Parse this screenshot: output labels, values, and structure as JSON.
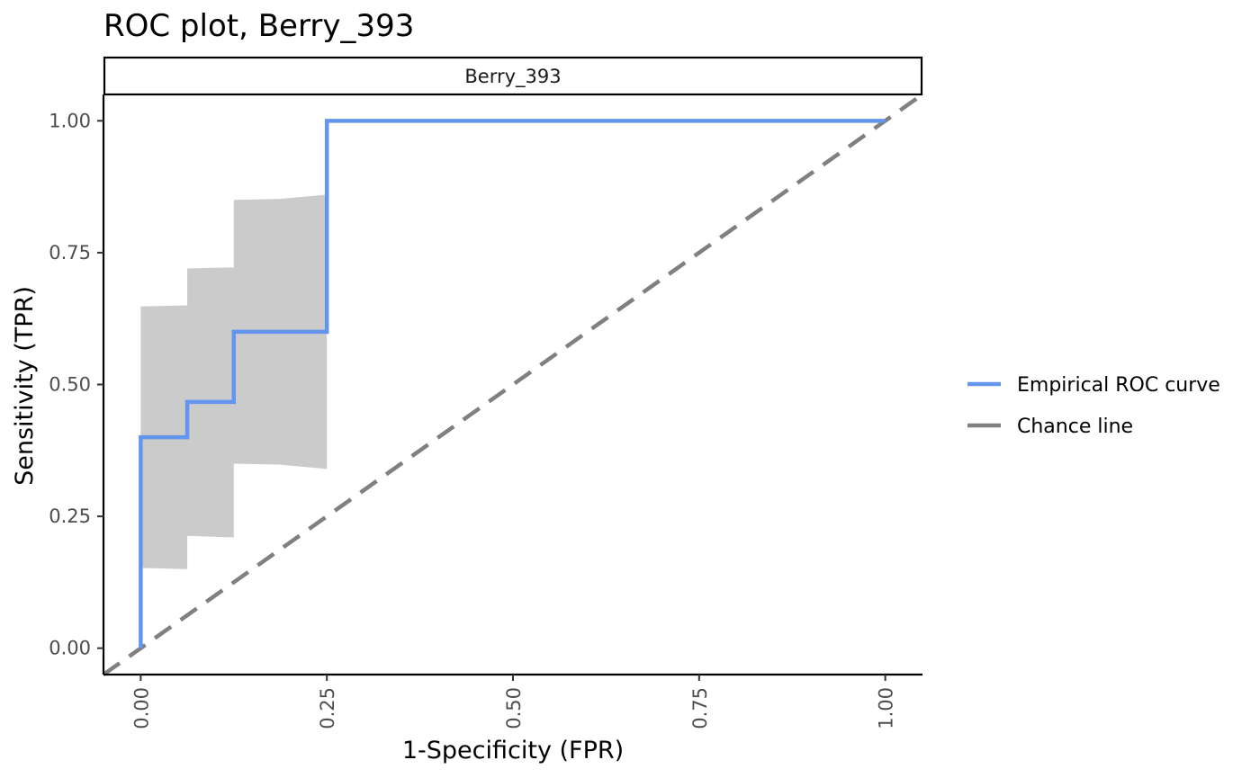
{
  "chart_data": {
    "type": "line",
    "title": "ROC plot, Berry_393",
    "facet_label": "Berry_393",
    "xlabel": "1-Specificity (FPR)",
    "ylabel": "Sensitivity (TPR)",
    "xlim": [
      -0.05,
      1.05
    ],
    "ylim": [
      -0.05,
      1.05
    ],
    "x_ticks": [
      0,
      0.25,
      0.5,
      0.75,
      1
    ],
    "x_tick_labels": [
      "0.00",
      "0.25",
      "0.50",
      "0.75",
      "1.00"
    ],
    "y_ticks": [
      0,
      0.25,
      0.5,
      0.75,
      1
    ],
    "y_tick_labels": [
      "0.00",
      "0.25",
      "0.50",
      "0.75",
      "1.00"
    ],
    "grid": false,
    "legend_position": "right",
    "colors": {
      "roc": "#6495ED",
      "chance": "#808080",
      "ci_band": "#CBCBCB"
    },
    "series": [
      {
        "name": "Empirical ROC curve",
        "style": "solid",
        "points": [
          [
            0,
            0
          ],
          [
            0,
            0.4
          ],
          [
            0.0625,
            0.4
          ],
          [
            0.0625,
            0.467
          ],
          [
            0.125,
            0.467
          ],
          [
            0.125,
            0.6
          ],
          [
            0.25,
            0.6
          ],
          [
            0.25,
            1
          ],
          [
            1,
            1
          ]
        ]
      },
      {
        "name": "Chance line",
        "style": "dashed",
        "points": [
          [
            -0.05,
            -0.05
          ],
          [
            1.05,
            1.05
          ]
        ]
      }
    ],
    "confidence_band": {
      "x": [
        0,
        0.0625,
        0.0625,
        0.125,
        0.125,
        0.1875,
        0.25
      ],
      "upper": [
        0.648,
        0.65,
        0.72,
        0.722,
        0.85,
        0.852,
        0.86
      ],
      "lower": [
        0.152,
        0.15,
        0.213,
        0.21,
        0.35,
        0.348,
        0.34
      ]
    }
  }
}
